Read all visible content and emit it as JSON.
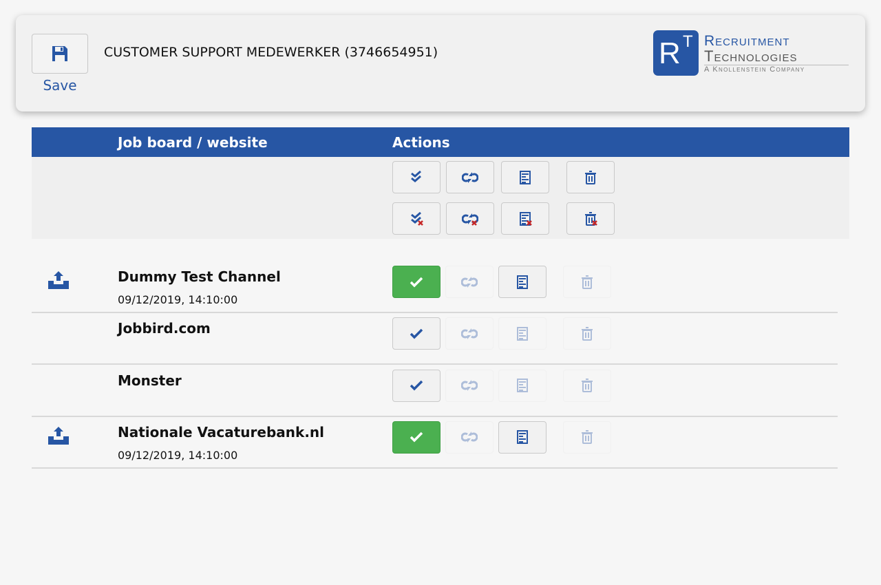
{
  "header": {
    "save_label": "Save",
    "title": "CUSTOMER SUPPORT MEDEWERKER (3746654951)",
    "logo": {
      "mark_r": "R",
      "mark_t": "T",
      "line1": "Recruitment",
      "line2": "Technologies",
      "line3": "A Knollenstein Company"
    }
  },
  "table": {
    "col_board": "Job board / website",
    "col_actions": "Actions"
  },
  "colors": {
    "primary": "#2756a4",
    "success": "#4bb050",
    "danger": "#c62828"
  },
  "bulk_actions": [
    {
      "icon": "double-check-icon",
      "name": "publish-all-button"
    },
    {
      "icon": "refresh-icon",
      "name": "republish-all-button"
    },
    {
      "icon": "form-icon",
      "name": "edit-all-button"
    },
    {
      "icon": "trash-icon",
      "name": "delete-all-button"
    },
    {
      "icon": "double-check-remove-icon",
      "name": "unselect-publish-all-button"
    },
    {
      "icon": "refresh-remove-icon",
      "name": "unselect-republish-all-button"
    },
    {
      "icon": "form-remove-icon",
      "name": "unselect-edit-all-button"
    },
    {
      "icon": "trash-remove-icon",
      "name": "unselect-delete-all-button"
    }
  ],
  "rows": [
    {
      "name": "Dummy Test Channel",
      "date": "09/12/2019, 14:10:00",
      "published": true,
      "states": [
        "success",
        "disabled",
        "default",
        "disabled"
      ]
    },
    {
      "name": "Jobbird.com",
      "date": "",
      "published": false,
      "states": [
        "default",
        "disabled",
        "disabled",
        "disabled"
      ]
    },
    {
      "name": "Monster",
      "date": "",
      "published": false,
      "states": [
        "default",
        "disabled",
        "disabled",
        "disabled"
      ]
    },
    {
      "name": "Nationale Vacaturebank.nl",
      "date": "09/12/2019, 14:10:00",
      "published": true,
      "states": [
        "success",
        "disabled",
        "default",
        "disabled"
      ]
    }
  ]
}
